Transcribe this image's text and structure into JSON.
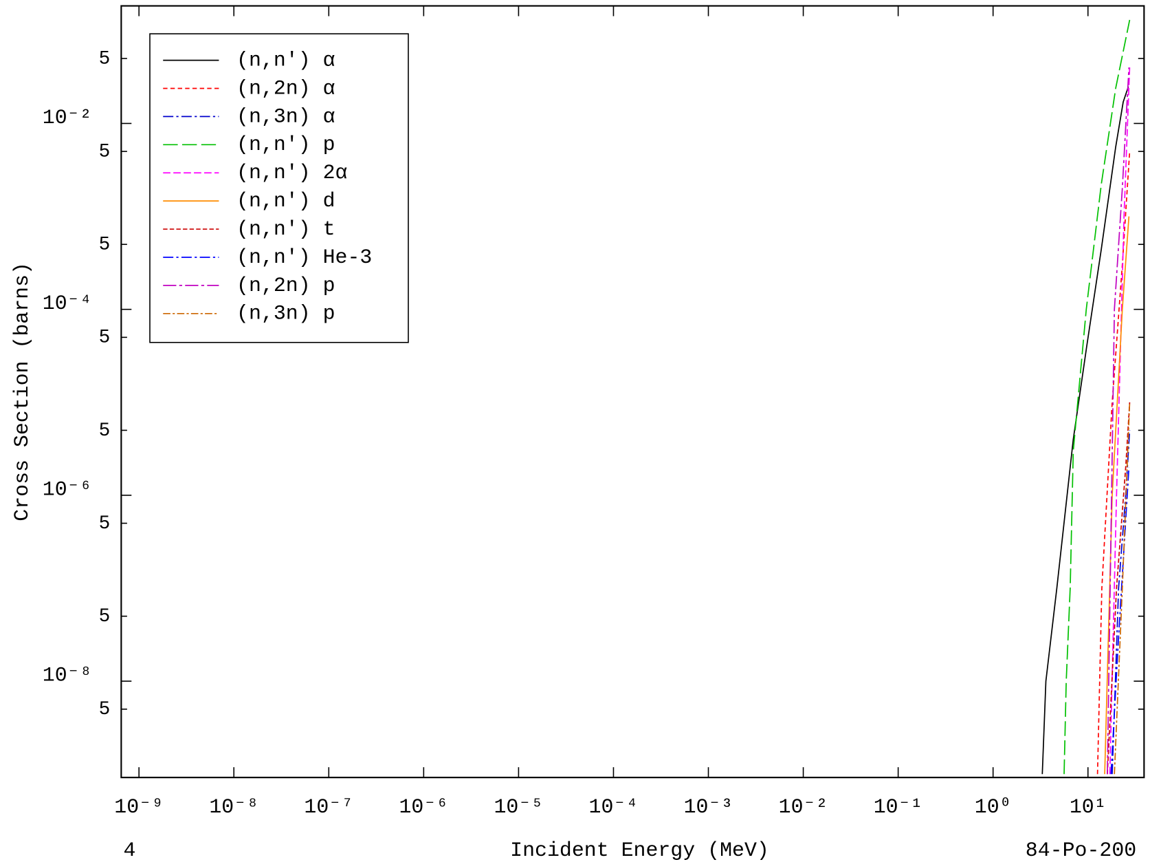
{
  "chart_data": {
    "type": "line",
    "x_label": "Incident Energy (MeV)",
    "y_label": "Cross Section (barns)",
    "corner_label": "4",
    "annotation": "84-Po-200",
    "log_x": true,
    "log_y": true,
    "legend": "upper left",
    "xlim": [
      6.5e-10,
      39
    ],
    "ylim": [
      9.2e-10,
      0.184
    ],
    "xticks": [
      {
        "value": 1e-09,
        "label": "10⁻⁹"
      },
      {
        "value": 1e-08,
        "label": "10⁻⁸"
      },
      {
        "value": 1e-07,
        "label": "10⁻⁷"
      },
      {
        "value": 1e-06,
        "label": "10⁻⁶"
      },
      {
        "value": 1e-05,
        "label": "10⁻⁵"
      },
      {
        "value": 0.0001,
        "label": "10⁻⁴"
      },
      {
        "value": 0.001,
        "label": "10⁻³"
      },
      {
        "value": 0.01,
        "label": "10⁻²"
      },
      {
        "value": 0.1,
        "label": "10⁻¹"
      },
      {
        "value": 1,
        "label": "10⁰"
      },
      {
        "value": 10,
        "label": "10¹"
      }
    ],
    "yticks": [
      {
        "value": 0.05,
        "label": "5"
      },
      {
        "value": 0.01,
        "label": "10⁻²"
      },
      {
        "value": 0.005,
        "label": "5"
      },
      {
        "value": 0.0005,
        "label": "5"
      },
      {
        "value": 0.0001,
        "label": "10⁻⁴"
      },
      {
        "value": 5e-05,
        "label": "5"
      },
      {
        "value": 5e-06,
        "label": "5"
      },
      {
        "value": 1e-06,
        "label": "10⁻⁶"
      },
      {
        "value": 5e-07,
        "label": "5"
      },
      {
        "value": 5e-08,
        "label": "5"
      },
      {
        "value": 1e-08,
        "label": "10⁻⁸"
      },
      {
        "value": 5e-09,
        "label": "5"
      }
    ],
    "series": [
      {
        "name": "(n,n′) α",
        "color": "#000000",
        "dash": "none",
        "x": [
          3.3,
          3.6,
          4.7,
          7.0,
          9.7,
          13.8,
          19.6,
          23.5,
          26.7
        ],
        "values": [
          1e-09,
          1e-08,
          1e-07,
          4e-06,
          4e-05,
          0.00044,
          0.0056,
          0.017,
          0.025
        ]
      },
      {
        "name": "(n,2n) α",
        "color": "#ff0000",
        "dash": "6,4",
        "x": [
          12.6,
          14,
          18,
          23,
          27.5
        ],
        "values": [
          1e-09,
          1e-07,
          1e-05,
          0.0003,
          0.005
        ]
      },
      {
        "name": "(n,3n) α",
        "color": "#0000cc",
        "dash": "14,4,3,4",
        "x": [
          18,
          21,
          25,
          27.5
        ],
        "values": [
          1e-09,
          1e-07,
          1e-06,
          5e-06
        ]
      },
      {
        "name": "(n,n′) p",
        "color": "#00c000",
        "dash": "20,6",
        "x": [
          5.6,
          5.9,
          6.5,
          7.0,
          9.6,
          13.8,
          19.6,
          27.5
        ],
        "values": [
          1e-09,
          1e-08,
          1e-07,
          3e-06,
          0.0001,
          0.0022,
          0.024,
          0.13
        ]
      },
      {
        "name": "(n,n′) 2α",
        "color": "#ff00ff",
        "dash": "10,4",
        "x": [
          17,
          20,
          24,
          27.5
        ],
        "values": [
          1e-09,
          1e-06,
          0.001,
          0.04
        ]
      },
      {
        "name": "(n,n′) d",
        "color": "#ff8c00",
        "dash": "none",
        "x": [
          15,
          18,
          23,
          27
        ],
        "values": [
          1e-09,
          1e-06,
          0.0001,
          0.001
        ]
      },
      {
        "name": "(n,n′) t",
        "color": "#cc0000",
        "dash": "6,3",
        "x": [
          16,
          20,
          25,
          27.5
        ],
        "values": [
          1e-09,
          1e-07,
          2e-06,
          1e-05
        ]
      },
      {
        "name": "(n,n′) He-3",
        "color": "#0000ff",
        "dash": "14,4,3,4",
        "x": [
          17.5,
          21,
          27
        ],
        "values": [
          1e-09,
          3e-08,
          2e-06
        ]
      },
      {
        "name": "(n,2n) p",
        "color": "#c000c0",
        "dash": "18,4,4,4",
        "x": [
          16,
          19,
          23,
          27
        ],
        "values": [
          1e-09,
          0.0001,
          0.002,
          0.04
        ]
      },
      {
        "name": "(n,3n) p",
        "color": "#cc6600",
        "dash": "10,3,3,3",
        "x": [
          19,
          23,
          27.5
        ],
        "values": [
          1e-09,
          1e-07,
          1e-05
        ]
      }
    ]
  }
}
